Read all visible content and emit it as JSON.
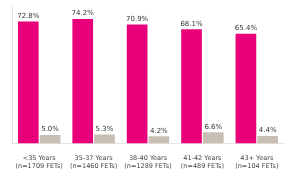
{
  "chart_data": {
    "type": "bar",
    "categories": [
      "<35 Years\n(n=1709 FETs)",
      "35-37 Years\n(n=1460 FETs)",
      "38-40 Years\n(n=1289 FETs)",
      "41-42 Years\n(n=489 FETs)",
      "43+ Years\n(n=104 FETs)"
    ],
    "series": [
      {
        "color": "#E8007A",
        "values": [
          72.8,
          74.2,
          70.9,
          68.1,
          65.4
        ],
        "value_labels": [
          "72.8%",
          "74.2%",
          "70.9%",
          "68.1%",
          "65.4%"
        ]
      },
      {
        "color": "#C8BEB4",
        "values": [
          5.0,
          5.3,
          4.2,
          6.6,
          4.4
        ],
        "value_labels": [
          "5.0%",
          "5.3%",
          "4.2%",
          "6.6%",
          "4.4%"
        ]
      }
    ],
    "ylim": [
      0,
      82
    ],
    "grid": false,
    "data_labels": true,
    "tick_labels": "x"
  }
}
